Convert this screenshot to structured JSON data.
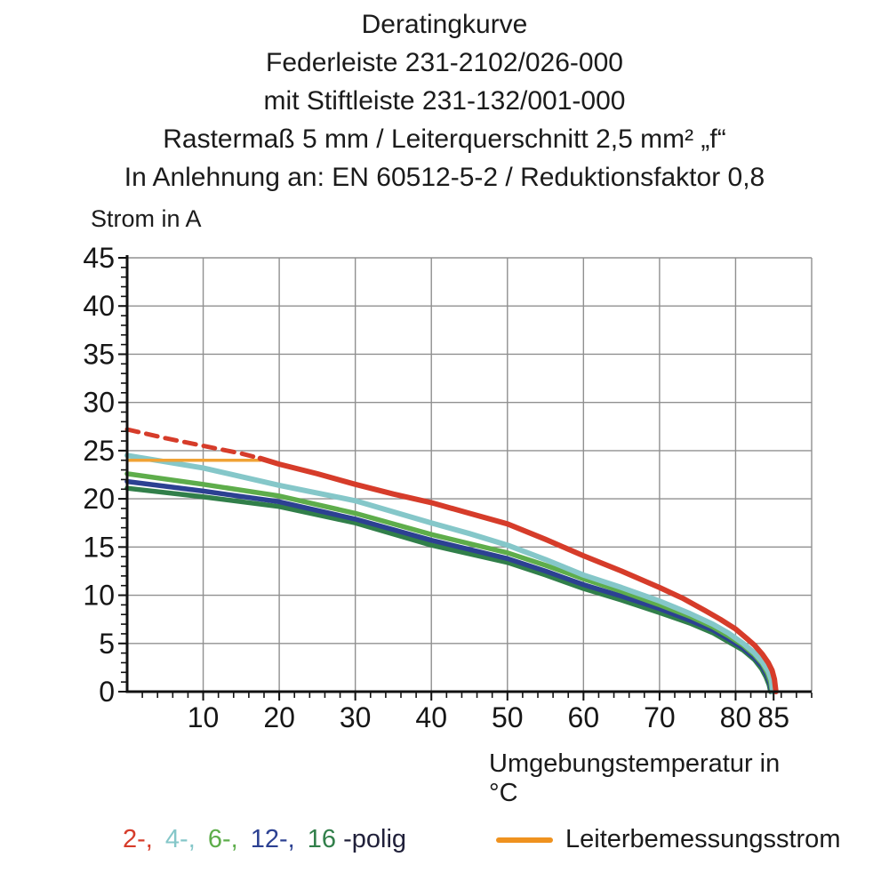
{
  "chart_data": {
    "type": "line",
    "title": "Deratingkurve",
    "subtitle_lines": [
      "Federleiste 231-2102/026-000",
      "mit Stiftleiste 231-132/001-000",
      "Rastermaß 5 mm / Leiterquerschnitt 2,5 mm² „f“",
      "In Anlehnung an: EN 60512-5-2 / Reduktionsfaktor 0,8"
    ],
    "xlabel": "Umgebungstemperatur in °C",
    "ylabel": "Strom in A",
    "xlim": [
      0,
      90
    ],
    "ylim": [
      0,
      45
    ],
    "grid": {
      "x_step": 10,
      "y_step": 5,
      "color": "#909090"
    },
    "ticks": {
      "x_minor": 2,
      "y_minor": 1
    },
    "x_ticks": [
      10,
      20,
      30,
      40,
      50,
      60,
      70,
      80,
      85
    ],
    "y_ticks": [
      45,
      40,
      35,
      30,
      25,
      20,
      15,
      10,
      5,
      0
    ],
    "rated_current_a": 24,
    "series": [
      {
        "name": "16-polig",
        "color": "#317f4a",
        "width": 5.5,
        "dash": null,
        "points": [
          [
            0,
            21.1
          ],
          [
            10,
            20.2
          ],
          [
            20,
            19.2
          ],
          [
            30,
            17.5
          ],
          [
            40,
            15.2
          ],
          [
            50,
            13.4
          ],
          [
            55,
            12.1
          ],
          [
            60,
            10.7
          ],
          [
            65,
            9.5
          ],
          [
            70,
            8.2
          ],
          [
            74,
            7.1
          ],
          [
            77,
            6.1
          ],
          [
            79,
            5.2
          ],
          [
            81,
            4.3
          ],
          [
            82.5,
            3.3
          ],
          [
            83.4,
            2.4
          ],
          [
            84,
            1.5
          ],
          [
            84.4,
            0.7
          ],
          [
            84.6,
            0
          ]
        ]
      },
      {
        "name": "12-polig",
        "color": "#2c4192",
        "width": 5.5,
        "dash": null,
        "points": [
          [
            0,
            21.8
          ],
          [
            10,
            20.8
          ],
          [
            20,
            19.7
          ],
          [
            30,
            17.9
          ],
          [
            40,
            15.7
          ],
          [
            50,
            13.8
          ],
          [
            55,
            12.5
          ],
          [
            60,
            11.1
          ],
          [
            65,
            9.9
          ],
          [
            70,
            8.6
          ],
          [
            74,
            7.4
          ],
          [
            77,
            6.4
          ],
          [
            79,
            5.5
          ],
          [
            81,
            4.5
          ],
          [
            82.5,
            3.5
          ],
          [
            83.5,
            2.6
          ],
          [
            84.1,
            1.7
          ],
          [
            84.5,
            0.9
          ],
          [
            84.7,
            0
          ]
        ]
      },
      {
        "name": "6-polig",
        "color": "#5ead4b",
        "width": 5.5,
        "dash": null,
        "points": [
          [
            0,
            22.6
          ],
          [
            10,
            21.5
          ],
          [
            20,
            20.3
          ],
          [
            30,
            18.5
          ],
          [
            40,
            16.3
          ],
          [
            50,
            14.4
          ],
          [
            55,
            13.1
          ],
          [
            60,
            11.7
          ],
          [
            65,
            10.4
          ],
          [
            70,
            9.0
          ],
          [
            74,
            7.8
          ],
          [
            77,
            6.7
          ],
          [
            79,
            5.8
          ],
          [
            81,
            4.8
          ],
          [
            82.5,
            3.8
          ],
          [
            83.5,
            2.9
          ],
          [
            84.2,
            1.9
          ],
          [
            84.6,
            1.0
          ],
          [
            84.8,
            0
          ]
        ]
      },
      {
        "name": "4-polig",
        "color": "#85c7c9",
        "width": 6,
        "dash": null,
        "points": [
          [
            0,
            24.5
          ],
          [
            10,
            23.2
          ],
          [
            20,
            21.4
          ],
          [
            30,
            19.8
          ],
          [
            40,
            17.5
          ],
          [
            45,
            16.4
          ],
          [
            50,
            15.2
          ],
          [
            55,
            13.7
          ],
          [
            60,
            12.1
          ],
          [
            65,
            10.8
          ],
          [
            70,
            9.4
          ],
          [
            74,
            8.1
          ],
          [
            77,
            7.0
          ],
          [
            79,
            6.1
          ],
          [
            81,
            5.0
          ],
          [
            82.5,
            4.0
          ],
          [
            83.5,
            3.1
          ],
          [
            84.3,
            2.1
          ],
          [
            84.7,
            1.2
          ],
          [
            84.9,
            0
          ]
        ]
      },
      {
        "name": "Leiterbemessungsstrom",
        "color": "#f0a235",
        "width": 3.5,
        "dash": null,
        "points": [
          [
            0,
            24
          ],
          [
            17.5,
            24
          ]
        ]
      },
      {
        "name": "2-polig-gestrichelt",
        "color": "#d63c2a",
        "width": 5,
        "dash": "13 9",
        "points": [
          [
            0,
            27.2
          ],
          [
            5,
            26.3
          ],
          [
            10,
            25.5
          ],
          [
            15,
            24.7
          ],
          [
            17.5,
            24.2
          ]
        ]
      },
      {
        "name": "2-polig",
        "color": "#d63c2a",
        "width": 6,
        "dash": null,
        "points": [
          [
            17.5,
            24.2
          ],
          [
            20,
            23.6
          ],
          [
            25,
            22.6
          ],
          [
            30,
            21.5
          ],
          [
            35,
            20.5
          ],
          [
            40,
            19.6
          ],
          [
            45,
            18.5
          ],
          [
            50,
            17.4
          ],
          [
            55,
            15.8
          ],
          [
            60,
            14.1
          ],
          [
            65,
            12.5
          ],
          [
            70,
            10.8
          ],
          [
            73,
            9.7
          ],
          [
            76,
            8.4
          ],
          [
            78,
            7.5
          ],
          [
            80,
            6.5
          ],
          [
            81.5,
            5.5
          ],
          [
            82.5,
            4.8
          ],
          [
            83.5,
            3.9
          ],
          [
            84.3,
            3.0
          ],
          [
            84.8,
            2.2
          ],
          [
            85.1,
            1.3
          ],
          [
            85.3,
            0
          ]
        ]
      }
    ]
  },
  "legend": {
    "pole_items": [
      {
        "label": "2-,",
        "color": "#d63c2a"
      },
      {
        "label": "4-,",
        "color": "#85c7c9"
      },
      {
        "label": "6-,",
        "color": "#5ead4b"
      },
      {
        "label": "12-,",
        "color": "#2c4192"
      },
      {
        "label": "16",
        "color": "#317f4a"
      }
    ],
    "suffix": "-polig",
    "suffix_color": "#20203a",
    "rated_label": "Leiterbemessungsstrom",
    "rated_color": "#ef921f"
  }
}
